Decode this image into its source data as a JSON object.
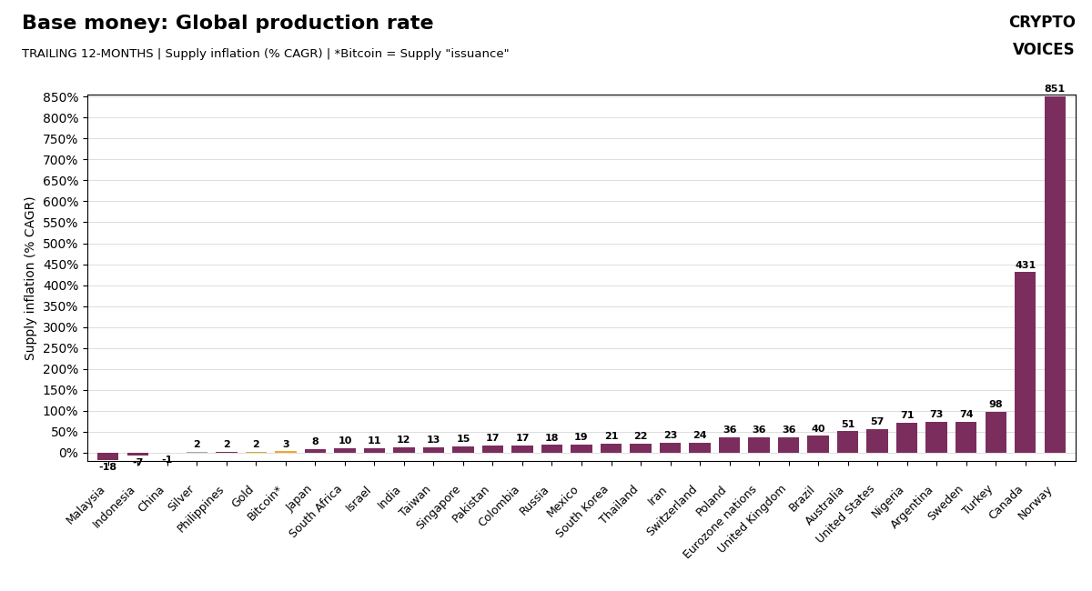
{
  "chart_data": {
    "type": "bar",
    "title": "Base money: Global production rate",
    "subtitle": "TRAILING 12-MONTHS | Supply inflation (% CAGR) | *Bitcoin = Supply \"issuance\"",
    "ylabel": "Supply inflation (% CAGR)",
    "annotations": [
      "CRYPTO",
      "VOICES"
    ],
    "categories": [
      "Malaysia",
      "Indonesia",
      "China",
      "Silver",
      "Philippines",
      "Gold",
      "Bitcoin*",
      "Japan",
      "South Africa",
      "Israel",
      "India",
      "Taiwan",
      "Singapore",
      "Pakistan",
      "Colombia",
      "Russia",
      "Mexico",
      "South Korea",
      "Thailand",
      "Iran",
      "Switzerland",
      "Poland",
      "Eurozone nations",
      "United Kingdom",
      "Brazil",
      "Australia",
      "United States",
      "Nigeria",
      "Argentina",
      "Sweden",
      "Turkey",
      "Canada",
      "Norway"
    ],
    "values": [
      -18,
      -7,
      -1,
      2,
      2,
      2,
      3,
      8,
      10,
      11,
      12,
      13,
      15,
      17,
      17,
      18,
      19,
      21,
      22,
      23,
      24,
      36,
      36,
      36,
      40,
      51,
      57,
      71,
      73,
      74,
      98,
      431,
      851
    ],
    "colors": [
      "#7b2d5e",
      "#7b2d5e",
      "#7b2d5e",
      "#aaaaaa",
      "#7b2d5e",
      "#d4af37",
      "#f5a623",
      "#7b2d5e",
      "#7b2d5e",
      "#7b2d5e",
      "#7b2d5e",
      "#7b2d5e",
      "#7b2d5e",
      "#7b2d5e",
      "#7b2d5e",
      "#7b2d5e",
      "#7b2d5e",
      "#7b2d5e",
      "#7b2d5e",
      "#7b2d5e",
      "#7b2d5e",
      "#7b2d5e",
      "#7b2d5e",
      "#7b2d5e",
      "#7b2d5e",
      "#7b2d5e",
      "#7b2d5e",
      "#7b2d5e",
      "#7b2d5e",
      "#7b2d5e",
      "#7b2d5e",
      "#7b2d5e",
      "#7b2d5e"
    ],
    "ylim": [
      -20,
      855
    ],
    "yticks": [
      {
        "value": 0,
        "label": "0%"
      },
      {
        "value": 50,
        "label": "50%"
      },
      {
        "value": 100,
        "label": "100%"
      },
      {
        "value": 150,
        "label": "150%"
      },
      {
        "value": 200,
        "label": "200%"
      },
      {
        "value": 250,
        "label": "250%"
      },
      {
        "value": 300,
        "label": "300%"
      },
      {
        "value": 350,
        "label": "350%"
      },
      {
        "value": 400,
        "label": "400%"
      },
      {
        "value": 450,
        "label": "450%"
      },
      {
        "value": 500,
        "label": "500%"
      },
      {
        "value": 550,
        "label": "550%"
      },
      {
        "value": 600,
        "label": "600%"
      },
      {
        "value": 650,
        "label": "650%"
      },
      {
        "value": 700,
        "label": "700%"
      },
      {
        "value": 750,
        "label": "750%"
      },
      {
        "value": 800,
        "label": "800%"
      },
      {
        "value": 850,
        "label": "850%"
      }
    ],
    "grid": true,
    "data_labels": true
  }
}
